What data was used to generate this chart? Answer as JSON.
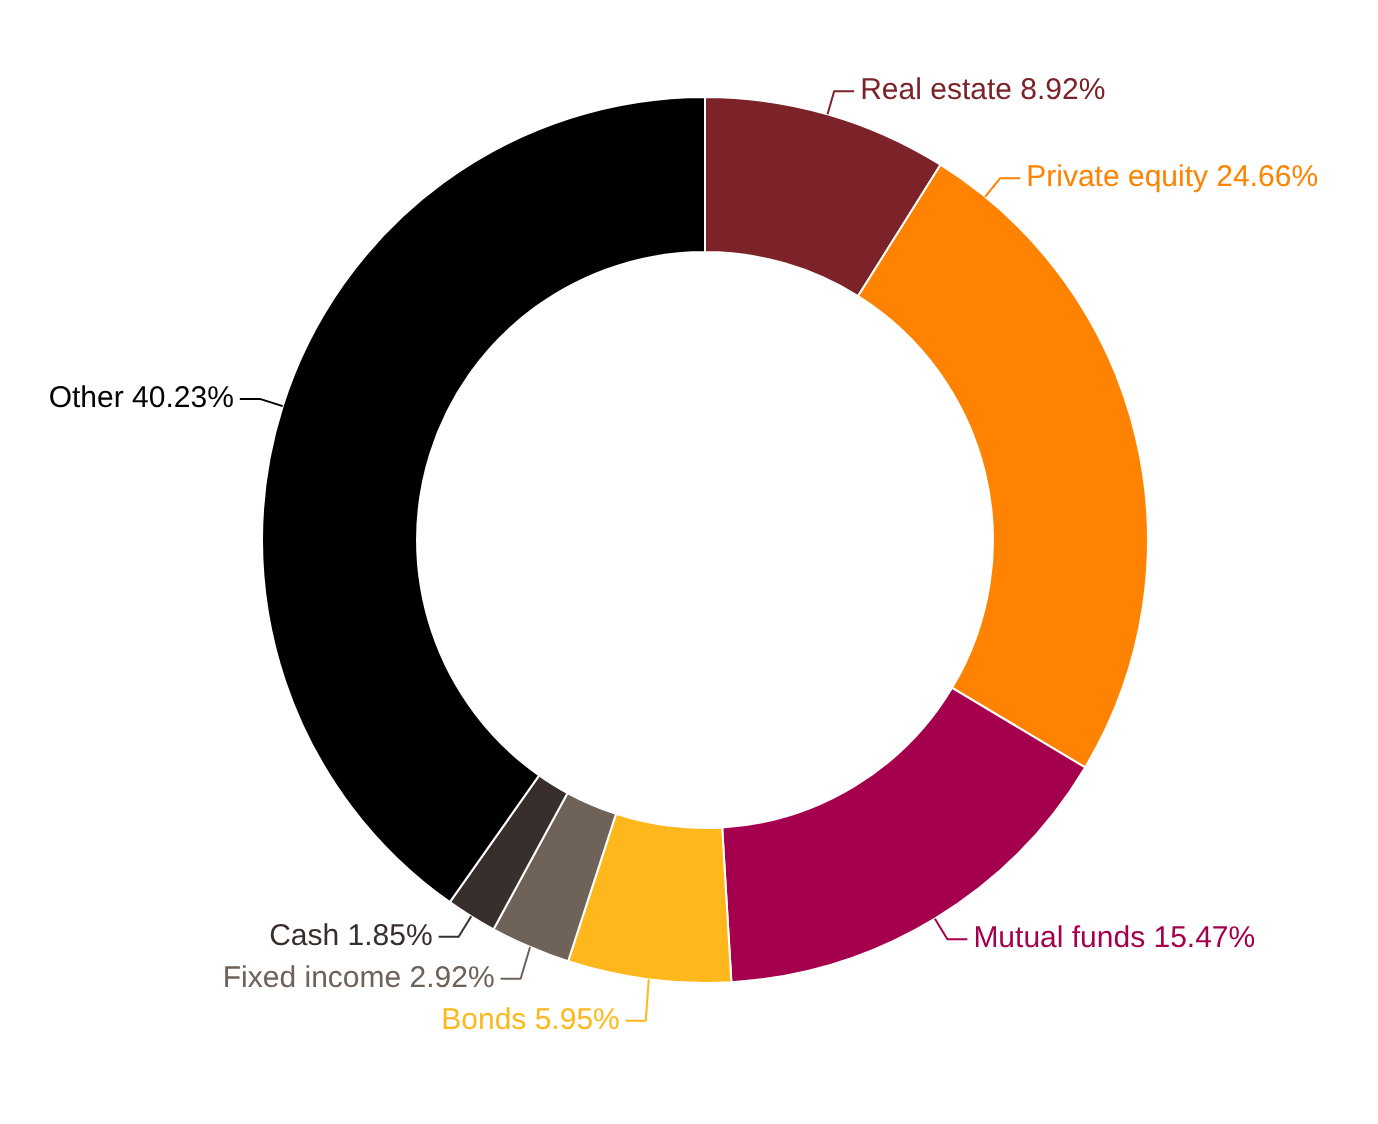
{
  "chart_data": {
    "type": "donut",
    "categories": [
      "Real estate",
      "Private equity",
      "Mutual funds",
      "Bonds",
      "Fixed income",
      "Cash",
      "Other"
    ],
    "values": [
      8.92,
      24.66,
      15.47,
      5.95,
      2.92,
      1.85,
      40.23
    ],
    "value_labels": [
      "8.92%",
      "24.66%",
      "15.47%",
      "5.95%",
      "2.92%",
      "1.85%",
      "40.23%"
    ],
    "colors": [
      "#7b2329",
      "#ff8200",
      "#a5004e",
      "#ffb81c",
      "#6e6259",
      "#382f2d",
      "#000000"
    ],
    "legend": false
  }
}
